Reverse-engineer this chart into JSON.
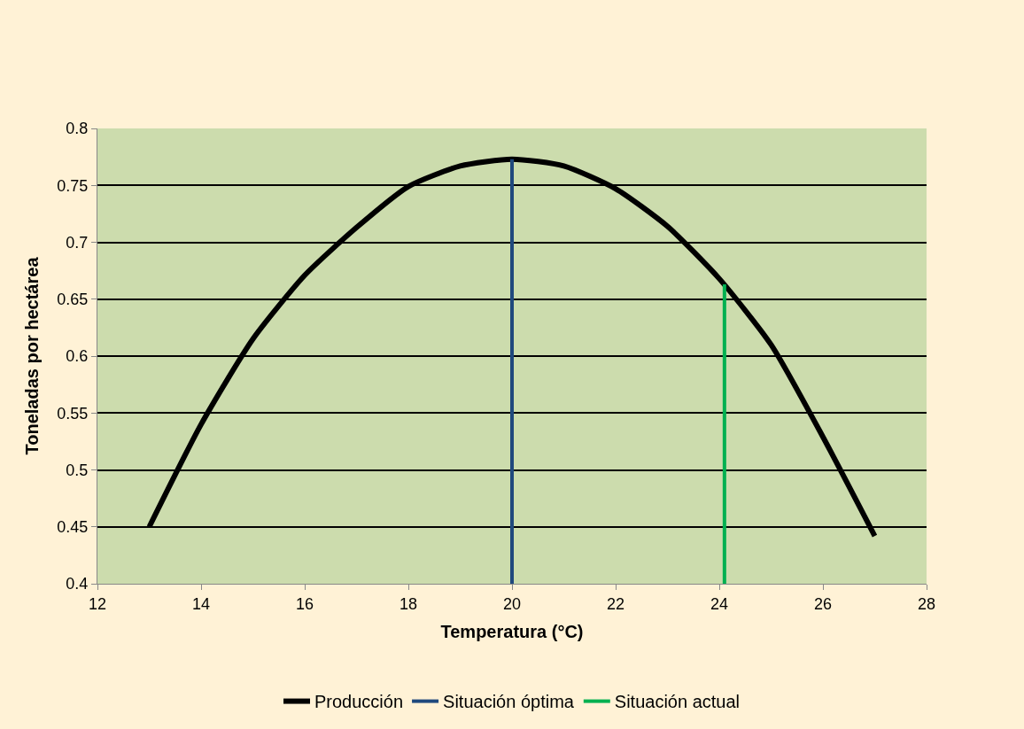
{
  "chart_data": {
    "type": "line",
    "xlabel": "Temperatura (°C)",
    "ylabel": "Toneladas por hectárea",
    "xlim": [
      12,
      28
    ],
    "xticks": [
      12,
      14,
      16,
      18,
      20,
      22,
      24,
      26,
      28
    ],
    "ylim": [
      0.4,
      0.8
    ],
    "yticks": [
      0.4,
      0.45,
      0.5,
      0.55,
      0.6,
      0.65,
      0.7,
      0.75,
      0.8
    ],
    "grid": "y",
    "legend": "bottom",
    "marker": "none",
    "line_style": "solid",
    "series": [
      {
        "name": "Producción",
        "color": "#000000",
        "x": [
          13,
          14,
          15,
          16,
          17,
          18,
          19,
          20,
          21,
          22,
          23,
          24,
          25,
          26,
          27
        ],
        "values": [
          0.45,
          0.54,
          0.615,
          0.671,
          0.713,
          0.749,
          0.767,
          0.773,
          0.767,
          0.747,
          0.714,
          0.668,
          0.61,
          0.529,
          0.442
        ]
      },
      {
        "name": "Situación óptima",
        "color": "#1f497d",
        "x": [
          20,
          20
        ],
        "values": [
          0.4,
          0.773
        ]
      },
      {
        "name": "Situación actual",
        "color": "#00b050",
        "x": [
          24.1,
          24.1
        ],
        "values": [
          0.4,
          0.663
        ]
      }
    ]
  }
}
